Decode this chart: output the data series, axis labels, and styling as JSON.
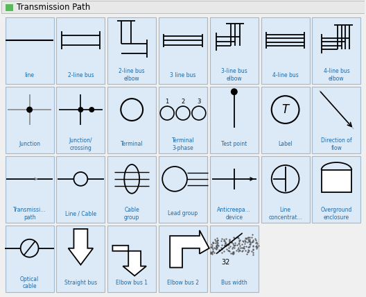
{
  "title": "Transmission Path",
  "title_icon_color": "#5cb85c",
  "bg_color": "#f0f0f0",
  "cell_bg": "#dce9f7",
  "cell_border": "#a0b8d0",
  "label_color": "#1a6aab",
  "symbol_color": "#000000",
  "cells": [
    {
      "row": 0,
      "col": 0,
      "label": "line"
    },
    {
      "row": 0,
      "col": 1,
      "label": "2-line bus"
    },
    {
      "row": 0,
      "col": 2,
      "label": "2-line bus\nelbow"
    },
    {
      "row": 0,
      "col": 3,
      "label": "3 line bus"
    },
    {
      "row": 0,
      "col": 4,
      "label": "3-line bus\nelbow"
    },
    {
      "row": 0,
      "col": 5,
      "label": "4-line bus"
    },
    {
      "row": 0,
      "col": 6,
      "label": "4-line bus\nelbow"
    },
    {
      "row": 1,
      "col": 0,
      "label": "Junction"
    },
    {
      "row": 1,
      "col": 1,
      "label": "Junction/\ncrossing"
    },
    {
      "row": 1,
      "col": 2,
      "label": "Terminal"
    },
    {
      "row": 1,
      "col": 3,
      "label": "Terminal\n3-phase"
    },
    {
      "row": 1,
      "col": 4,
      "label": "Test point"
    },
    {
      "row": 1,
      "col": 5,
      "label": "Label"
    },
    {
      "row": 1,
      "col": 6,
      "label": "Direction of\nflow"
    },
    {
      "row": 2,
      "col": 0,
      "label": "Transmissi...\npath"
    },
    {
      "row": 2,
      "col": 1,
      "label": "Line / Cable"
    },
    {
      "row": 2,
      "col": 2,
      "label": "Cable\ngroup"
    },
    {
      "row": 2,
      "col": 3,
      "label": "Lead group"
    },
    {
      "row": 2,
      "col": 4,
      "label": "Anticreepa...\ndevice"
    },
    {
      "row": 2,
      "col": 5,
      "label": "Line\nconcentrat..."
    },
    {
      "row": 2,
      "col": 6,
      "label": "Overground\nenclosure"
    },
    {
      "row": 3,
      "col": 0,
      "label": "Optical\ncable"
    },
    {
      "row": 3,
      "col": 1,
      "label": "Straight bus"
    },
    {
      "row": 3,
      "col": 2,
      "label": "Elbow bus 1"
    },
    {
      "row": 3,
      "col": 3,
      "label": "Elbow bus 2"
    },
    {
      "row": 3,
      "col": 4,
      "label": "Bus width"
    }
  ]
}
